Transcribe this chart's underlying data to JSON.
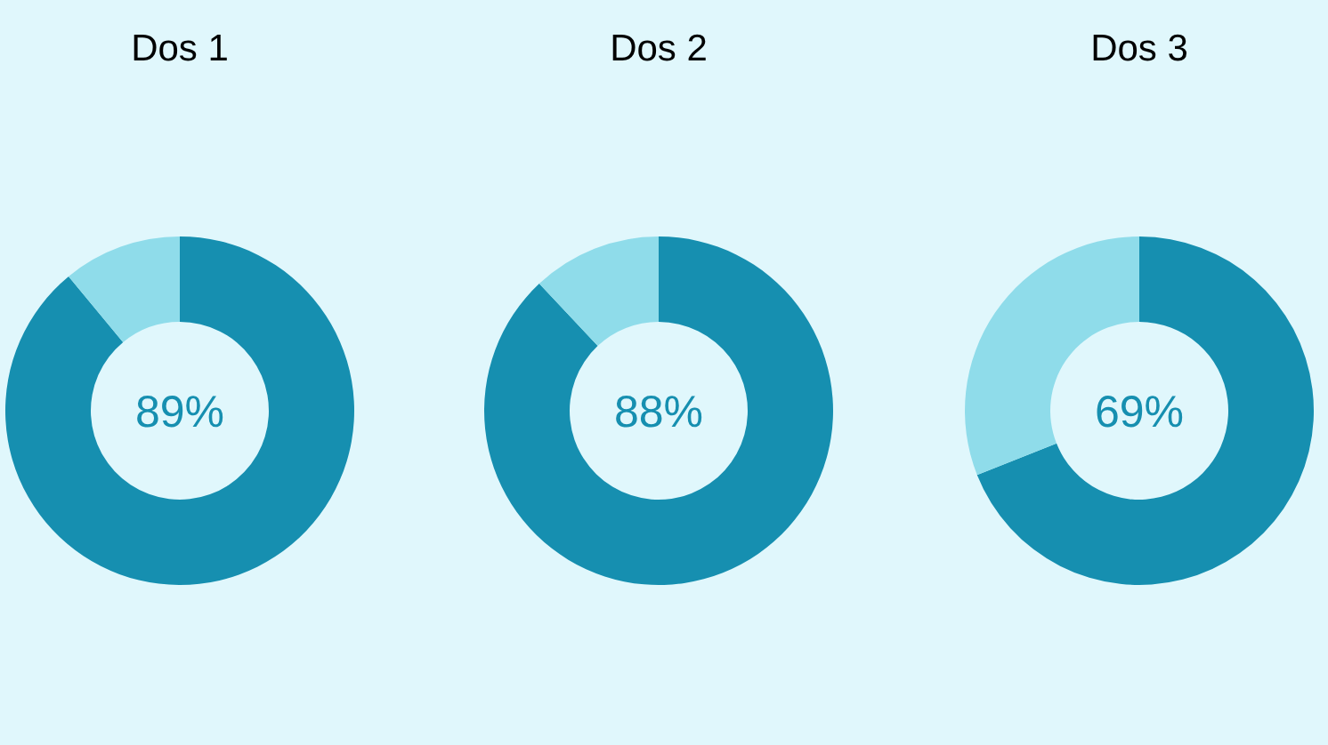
{
  "chart_data": [
    {
      "type": "donut",
      "title": "Dos 1",
      "categories": [
        null,
        null
      ],
      "values": [
        89,
        11
      ],
      "colors": [
        "#168fb0",
        "#8fdcea"
      ],
      "value_labels": [
        "89%",
        null
      ]
    },
    {
      "type": "donut",
      "title": "Dos 2",
      "categories": [
        null,
        null
      ],
      "values": [
        88,
        12
      ],
      "colors": [
        "#168fb0",
        "#8fdcea"
      ],
      "value_labels": [
        "88%",
        null
      ]
    },
    {
      "type": "donut",
      "title": "Dos 3",
      "categories": [
        null,
        null
      ],
      "values": [
        69,
        31
      ],
      "colors": [
        "#168fb0",
        "#8fdcea"
      ],
      "value_labels": [
        "69%",
        null
      ]
    }
  ]
}
